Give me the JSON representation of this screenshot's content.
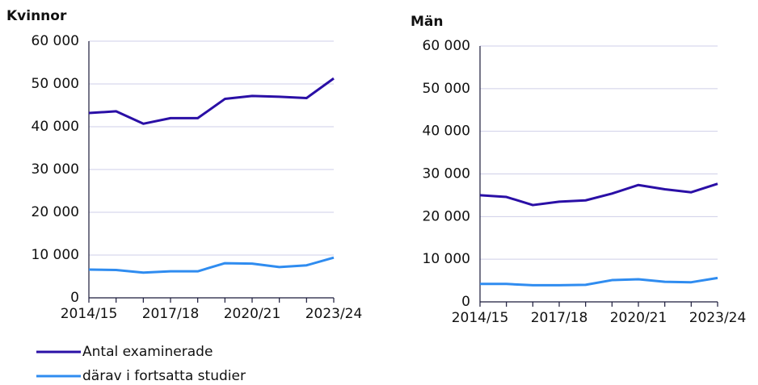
{
  "chart_data": [
    {
      "type": "line",
      "title": "Kvinnor",
      "categories": [
        "2014/15",
        null,
        null,
        "2017/18",
        null,
        null,
        "2020/21",
        null,
        null,
        "2023/24"
      ],
      "series": [
        {
          "name": "Antal examinerade",
          "color": "#2a0fa6",
          "values": [
            43200,
            43600,
            40700,
            42000,
            42000,
            46500,
            47200,
            47000,
            46700,
            51300
          ]
        },
        {
          "name": "därav i fortsatta studier",
          "color": "#2f8cf0",
          "values": [
            6600,
            6500,
            5900,
            6200,
            6200,
            8100,
            8000,
            7200,
            7600,
            9400
          ]
        }
      ],
      "ylim": [
        0,
        60000
      ],
      "yticks": [
        0,
        {
          "value": 10000,
          "label": "10 000"
        },
        {
          "value": 20000,
          "label": "20 000"
        },
        {
          "value": 30000,
          "label": "30 000"
        },
        {
          "value": 40000,
          "label": "40 000"
        },
        {
          "value": 50000,
          "label": "50 000"
        },
        {
          "value": 60000,
          "label": "60 000"
        }
      ],
      "grid": true
    },
    {
      "type": "line",
      "title": "Män",
      "categories": [
        "2014/15",
        null,
        null,
        "2017/18",
        null,
        null,
        "2020/21",
        null,
        null,
        "2023/24"
      ],
      "series": [
        {
          "color": "#2a0fa6",
          "values": [
            25000,
            24600,
            22700,
            23500,
            23800,
            25400,
            27400,
            26400,
            25700,
            27700
          ]
        },
        {
          "color": "#2f8cf0",
          "values": [
            4200,
            4200,
            3900,
            3900,
            4000,
            5100,
            5300,
            4700,
            4600,
            5600
          ]
        }
      ],
      "ylim": [
        0,
        60000
      ],
      "yticks": [
        0,
        {
          "value": 10000,
          "label": "10 000"
        },
        {
          "value": 20000,
          "label": "20 000"
        },
        {
          "value": 30000,
          "label": "30 000"
        },
        {
          "value": 40000,
          "label": "40 000"
        },
        {
          "value": 50000,
          "label": "50 000"
        },
        {
          "value": 60000,
          "label": "60 000"
        }
      ],
      "grid": true
    }
  ]
}
